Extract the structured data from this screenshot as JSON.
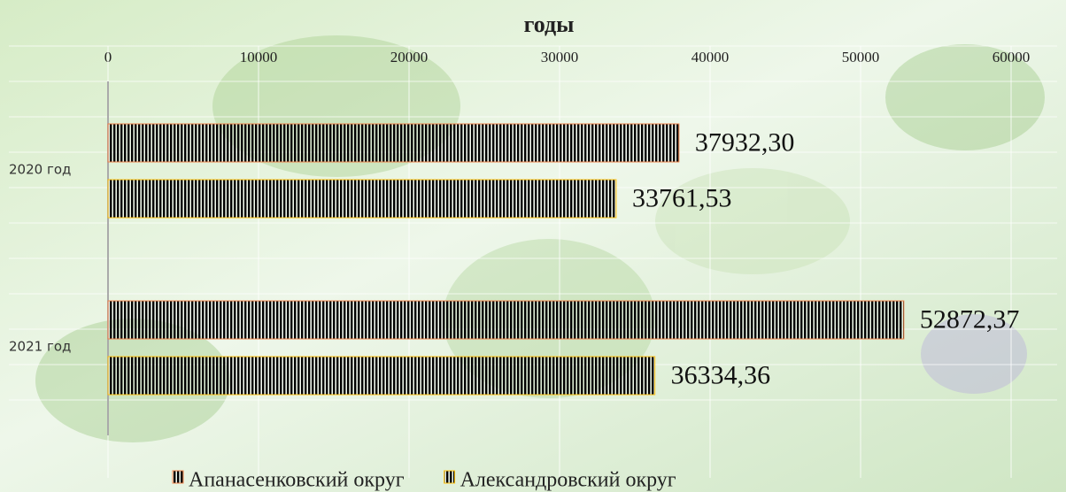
{
  "chart_data": {
    "type": "hbar",
    "title": "годы",
    "categories": [
      "2020 год",
      "2021 год"
    ],
    "series": [
      {
        "name": "Апанасенковский округ",
        "color": "#f0824a",
        "values": [
          37932.3,
          52872.37
        ],
        "value_labels": [
          "37932,30",
          "52872,37"
        ]
      },
      {
        "name": "Александровский округ",
        "color": "#ffc20e",
        "values": [
          33761.53,
          36334.36
        ],
        "value_labels": [
          "33761,53",
          "36334,36"
        ]
      }
    ],
    "xlim": [
      0,
      60000
    ],
    "xticks": [
      0,
      10000,
      20000,
      30000,
      40000,
      50000,
      60000
    ],
    "grid": true,
    "legend": "bottom"
  }
}
